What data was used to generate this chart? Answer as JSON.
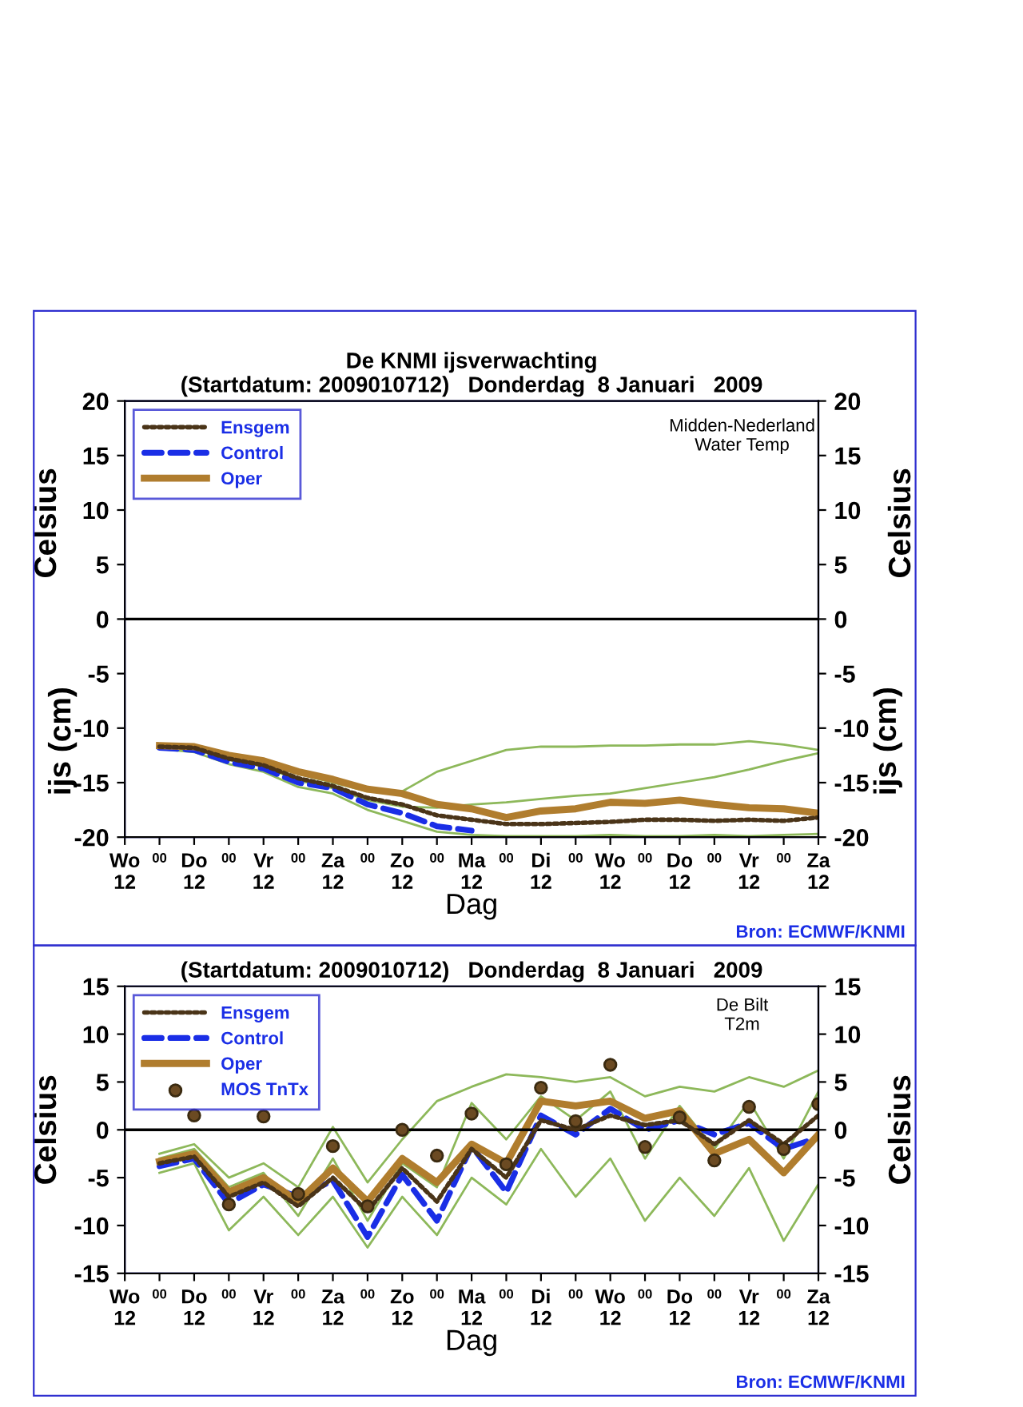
{
  "chart_data": [
    {
      "type": "line",
      "title": "De KNMI ijsverwachting",
      "subtitle": "(Startdatum: 2009010712)   Donderdag  8 Januari   2009",
      "categories": [
        "Wo\n12",
        "00",
        "Do\n12",
        "00",
        "Vr\n12",
        "00",
        "Za\n12",
        "00",
        "Zo\n12",
        "00",
        "Ma\n12",
        "00",
        "Di\n12",
        "00",
        "Wo\n12",
        "00",
        "Do\n12",
        "00",
        "Vr\n12",
        "00",
        "Za\n12"
      ],
      "xlabel": "Dag",
      "ylabel": "Celsius",
      "y2label": "Celsius",
      "ylim": [
        -20,
        20
      ],
      "yticks": [
        -20,
        -15,
        -10,
        -5,
        0,
        5,
        10,
        15,
        20
      ],
      "y2lim": [
        -20,
        20
      ],
      "y2ticks": [
        -20,
        -15,
        -10,
        -5,
        0,
        5,
        10,
        15,
        20
      ],
      "annotations": [
        "Midden-Nederland\nWater Temp",
        "Bron: ECMWF/KNMI",
        "ijs (cm)",
        "ijs (cm)"
      ],
      "ref_lines": [
        {
          "axis": "y",
          "value": 0,
          "color": "#000000"
        }
      ],
      "grid": false,
      "legend": "top left",
      "series": [
        {
          "color": "#8db85a",
          "line_style": "solid",
          "values": [
            null,
            -11.6,
            -11.7,
            -12.6,
            -13.2,
            -14.2,
            -15,
            -15.8,
            -15.8,
            -14,
            -13,
            -12,
            -11.7,
            -11.7,
            -11.6,
            -11.6,
            -11.5,
            -11.5,
            -11.2,
            -11.5,
            -12
          ]
        },
        {
          "color": "#8db85a",
          "line_style": "solid",
          "values": [
            null,
            -11.9,
            -12.2,
            -13.3,
            -14,
            -15.4,
            -16,
            -17.5,
            -18.5,
            -19.5,
            -19.8,
            -19.9,
            -19.9,
            -19.9,
            -19.8,
            -19.9,
            -19.9,
            -19.8,
            -19.9,
            -19.8,
            -19.7
          ]
        },
        {
          "color": "#8db85a",
          "line_style": "solid",
          "values": [
            null,
            -11.7,
            -11.9,
            -12.9,
            -13.5,
            -14.8,
            -15.5,
            -16.6,
            -17.2,
            -17.3,
            -17,
            -16.8,
            -16.5,
            -16.2,
            -16,
            -15.5,
            -15,
            -14.5,
            -13.8,
            -13,
            -12.3
          ]
        },
        {
          "name": "Ensgem",
          "color": "#4a3418",
          "line_style": "dotted",
          "values": [
            null,
            -11.7,
            -11.8,
            -12.8,
            -13.4,
            -14.6,
            -15.3,
            -16.4,
            -17,
            -18,
            -18.4,
            -18.8,
            -18.8,
            -18.7,
            -18.6,
            -18.4,
            -18.4,
            -18.5,
            -18.4,
            -18.5,
            -18.2
          ]
        },
        {
          "name": "Control",
          "color": "#1a2ee6",
          "line_style": "dashed",
          "values": [
            null,
            -11.8,
            -12,
            -13.1,
            -13.7,
            -15,
            -15.5,
            -17,
            -17.8,
            -19,
            -19.4,
            null,
            null,
            null,
            null,
            null,
            null,
            null,
            null,
            null,
            null
          ]
        },
        {
          "name": "Oper",
          "color": "#b07d2e",
          "line_style": "solid",
          "values": [
            null,
            -11.6,
            -11.7,
            -12.5,
            -13,
            -14,
            -14.7,
            -15.6,
            -16,
            -17,
            -17.4,
            -18.2,
            -17.6,
            -17.4,
            -16.8,
            -16.9,
            -16.6,
            -17,
            -17.3,
            -17.4,
            -17.8
          ]
        }
      ]
    },
    {
      "type": "line",
      "subtitle": "(Startdatum: 2009010712)   Donderdag  8 Januari   2009",
      "categories": [
        "Wo\n12",
        "00",
        "Do\n12",
        "00",
        "Vr\n12",
        "00",
        "Za\n12",
        "00",
        "Zo\n12",
        "00",
        "Ma\n12",
        "00",
        "Di\n12",
        "00",
        "Wo\n12",
        "00",
        "Do\n12",
        "00",
        "Vr\n12",
        "00",
        "Za\n12"
      ],
      "xlabel": "Dag",
      "ylabel": "Celsius",
      "y2label": "Celsius",
      "ylim": [
        -15,
        15
      ],
      "yticks": [
        -15,
        -10,
        -5,
        0,
        5,
        10,
        15
      ],
      "y2lim": [
        -15,
        15
      ],
      "y2ticks": [
        -15,
        -10,
        -5,
        0,
        5,
        10,
        15
      ],
      "annotations": [
        "De Bilt\nT2m",
        "Bron: ECMWF/KNMI"
      ],
      "ref_lines": [
        {
          "axis": "y",
          "value": 0,
          "color": "#000000"
        }
      ],
      "grid": false,
      "legend": "top left",
      "series": [
        {
          "color": "#8db85a",
          "line_style": "solid",
          "values": [
            null,
            -2.5,
            -1.5,
            -5,
            -3.5,
            -6,
            0.3,
            -5.5,
            -1,
            3,
            4.5,
            5.8,
            5.5,
            5,
            5.5,
            3.5,
            4.5,
            4,
            5.5,
            4.5,
            6.2
          ]
        },
        {
          "color": "#8db85a",
          "line_style": "solid",
          "values": [
            null,
            -4.5,
            -3.5,
            -10.5,
            -7,
            -11,
            -7,
            -12.3,
            -7,
            -11,
            -5,
            -7.8,
            -2,
            -7,
            -3,
            -9.5,
            -5,
            -9,
            -4,
            -11.6,
            -5.7
          ]
        },
        {
          "color": "#8db85a",
          "line_style": "solid",
          "values": [
            null,
            -3,
            -2,
            -6,
            -4.5,
            -9,
            -3,
            -9.5,
            -3.5,
            -6,
            2.8,
            -1,
            3.5,
            1,
            4,
            -3,
            2.5,
            -2,
            3,
            -3,
            4
          ]
        },
        {
          "name": "Ensgem",
          "color": "#4a3418",
          "line_style": "dotted",
          "values": [
            null,
            -3.5,
            -2.8,
            -7,
            -5.5,
            -8,
            -5,
            -8.5,
            -4,
            -7.5,
            -2,
            -5,
            1,
            0,
            1.5,
            0.5,
            1,
            -1.5,
            1,
            -1.5,
            1.5
          ]
        },
        {
          "name": "Control",
          "color": "#1a2ee6",
          "line_style": "dashed",
          "values": [
            null,
            -3.8,
            -3,
            -7.7,
            -5.7,
            -7,
            -5.3,
            -11.2,
            -4.7,
            -9.5,
            -1.7,
            -6.5,
            1.5,
            -0.5,
            2.2,
            0,
            1,
            -0.5,
            0.7,
            -2,
            -0.8
          ]
        },
        {
          "name": "Oper",
          "color": "#b07d2e",
          "line_style": "solid",
          "values": [
            null,
            -3.3,
            -2.5,
            -6.5,
            -5,
            -7.5,
            -4,
            -7.5,
            -3,
            -5.5,
            -1.5,
            -3.5,
            3,
            2.5,
            3,
            1.2,
            2,
            -2.5,
            -1,
            -4.5,
            -0.5
          ]
        },
        {
          "name": "MOS TnTx",
          "type": "scatter",
          "marker": "circle",
          "color": "#6b4a22",
          "values": [
            null,
            null,
            1.5,
            -7.8,
            1.4,
            -6.7,
            -1.7,
            -8,
            0,
            -2.7,
            1.7,
            -3.6,
            4.4,
            0.9,
            6.8,
            -1.8,
            1.3,
            -3.2,
            2.4,
            -2,
            2.7
          ]
        }
      ]
    }
  ]
}
